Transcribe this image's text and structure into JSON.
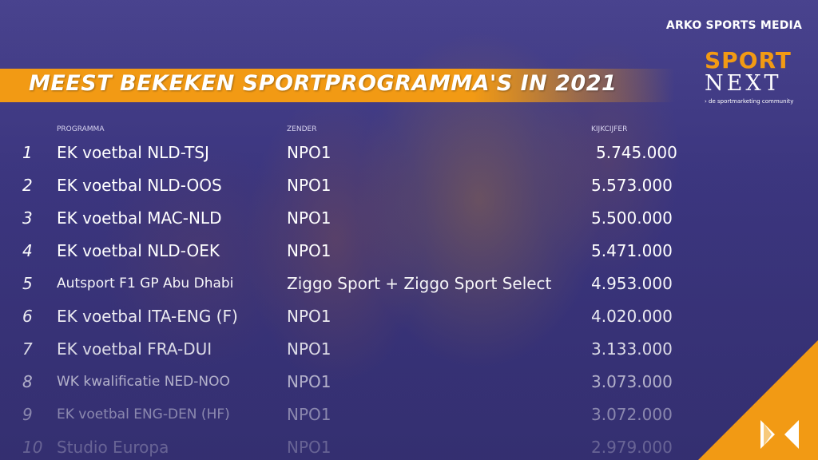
{
  "brand": "ARKO SPORTS MEDIA",
  "title": "MEEST BEKEKEN SPORTPROGRAMMA'S IN 2021",
  "logo": {
    "line1": "SPORT",
    "line2": "NEXT",
    "tagline": "de sportmarketing community"
  },
  "headers": {
    "programma": "PROGRAMMA",
    "zender": "ZENDER",
    "kijkcijfer": "KIJKCIJFER"
  },
  "rows": [
    {
      "rank": "1",
      "programma": "EK voetbal NLD-TSJ",
      "zender": "NPO1",
      "kijkcijfer": "5.745.000"
    },
    {
      "rank": "2",
      "programma": "EK voetbal NLD-OOS",
      "zender": "NPO1",
      "kijkcijfer": "5.573.000"
    },
    {
      "rank": "3",
      "programma": "EK voetbal MAC-NLD",
      "zender": "NPO1",
      "kijkcijfer": "5.500.000"
    },
    {
      "rank": "4",
      "programma": "EK voetbal NLD-OEK",
      "zender": "NPO1",
      "kijkcijfer": "5.471.000"
    },
    {
      "rank": "5",
      "programma": "Autsport F1 GP Abu Dhabi",
      "zender": "Ziggo Sport + Ziggo Sport Select",
      "kijkcijfer": "4.953.000"
    },
    {
      "rank": "6",
      "programma": "EK voetbal ITA-ENG (F)",
      "zender": "NPO1",
      "kijkcijfer": "4.020.000"
    },
    {
      "rank": "7",
      "programma": "EK voetbal FRA-DUI",
      "zender": "NPO1",
      "kijkcijfer": "3.133.000"
    },
    {
      "rank": "8",
      "programma": "WK kwalificatie NED-NOO",
      "zender": "NPO1",
      "kijkcijfer": "3.073.000"
    },
    {
      "rank": "9",
      "programma": "EK voetbal ENG-DEN (HF)",
      "zender": "NPO1",
      "kijkcijfer": "3.072.000"
    },
    {
      "rank": "10",
      "programma": "Studio Europa",
      "zender": "NPO1",
      "kijkcijfer": "2.979.000"
    }
  ],
  "colors": {
    "accent": "#f29a14",
    "background": "#3d3780",
    "text": "#ffffff"
  }
}
